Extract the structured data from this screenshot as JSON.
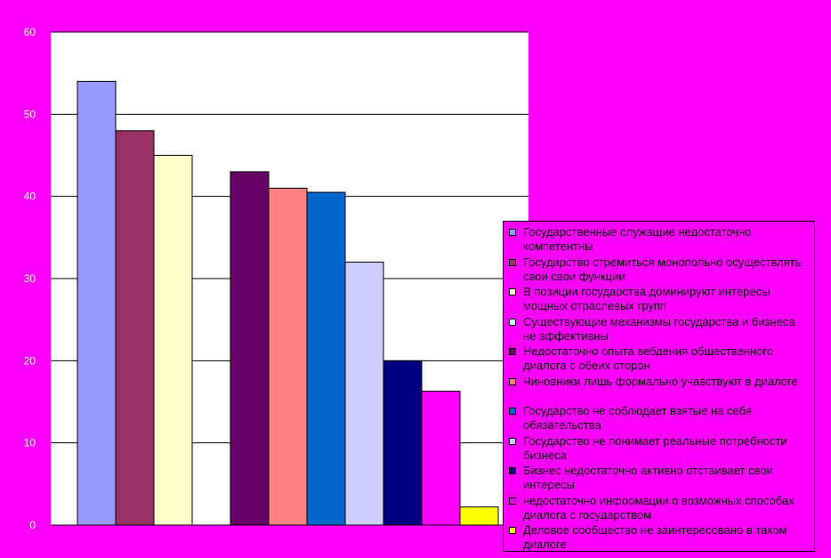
{
  "chart_data": {
    "type": "bar",
    "yticks": [
      "0",
      "10",
      "20",
      "30",
      "40",
      "50",
      "60"
    ],
    "ylim": [
      0,
      60
    ],
    "grid": true,
    "legend_position": "right",
    "series": [
      {
        "name": "Государственные служащие недостаточно компетентны",
        "value": 54,
        "color": "#9999FF"
      },
      {
        "name": "Государство стремиться монопольно осуществлять свои свои функции",
        "value": 48,
        "color": "#993366"
      },
      {
        "name": "В позиции государства доминируют интересы мощных отраслевых групп",
        "value": 45,
        "color": "#FFFFCC"
      },
      {
        "name": "Существующие механизмы государства и бизнеса не эффективны",
        "value": 0,
        "color": "#CCFFFF"
      },
      {
        "name": "Недостаточно опыта вебдения общественного диалога с обеих сторон",
        "value": 43,
        "color": "#660066"
      },
      {
        "name": "Чиновники лишь формально учавствуют в диалоге",
        "value": 41,
        "color": "#FF8080"
      },
      {
        "name": "Государство не соблюдает взятые на себя обязательства",
        "value": 40.5,
        "color": "#0066CC"
      },
      {
        "name": "Государство не понимает реальные потребности бизнеса",
        "value": 32,
        "color": "#CCCCFF"
      },
      {
        "name": "Бизнес недостаточно активно отстаивает свои интересы",
        "value": 20,
        "color": "#000080"
      },
      {
        "name": "недостаточно информации о возможных способах диалога с государством",
        "value": 16.3,
        "color": "#FF00FF"
      },
      {
        "name": "Деловое сообщество не заинтересовано в таком диалоге",
        "value": 2.2,
        "color": "#FFFF00"
      }
    ]
  }
}
